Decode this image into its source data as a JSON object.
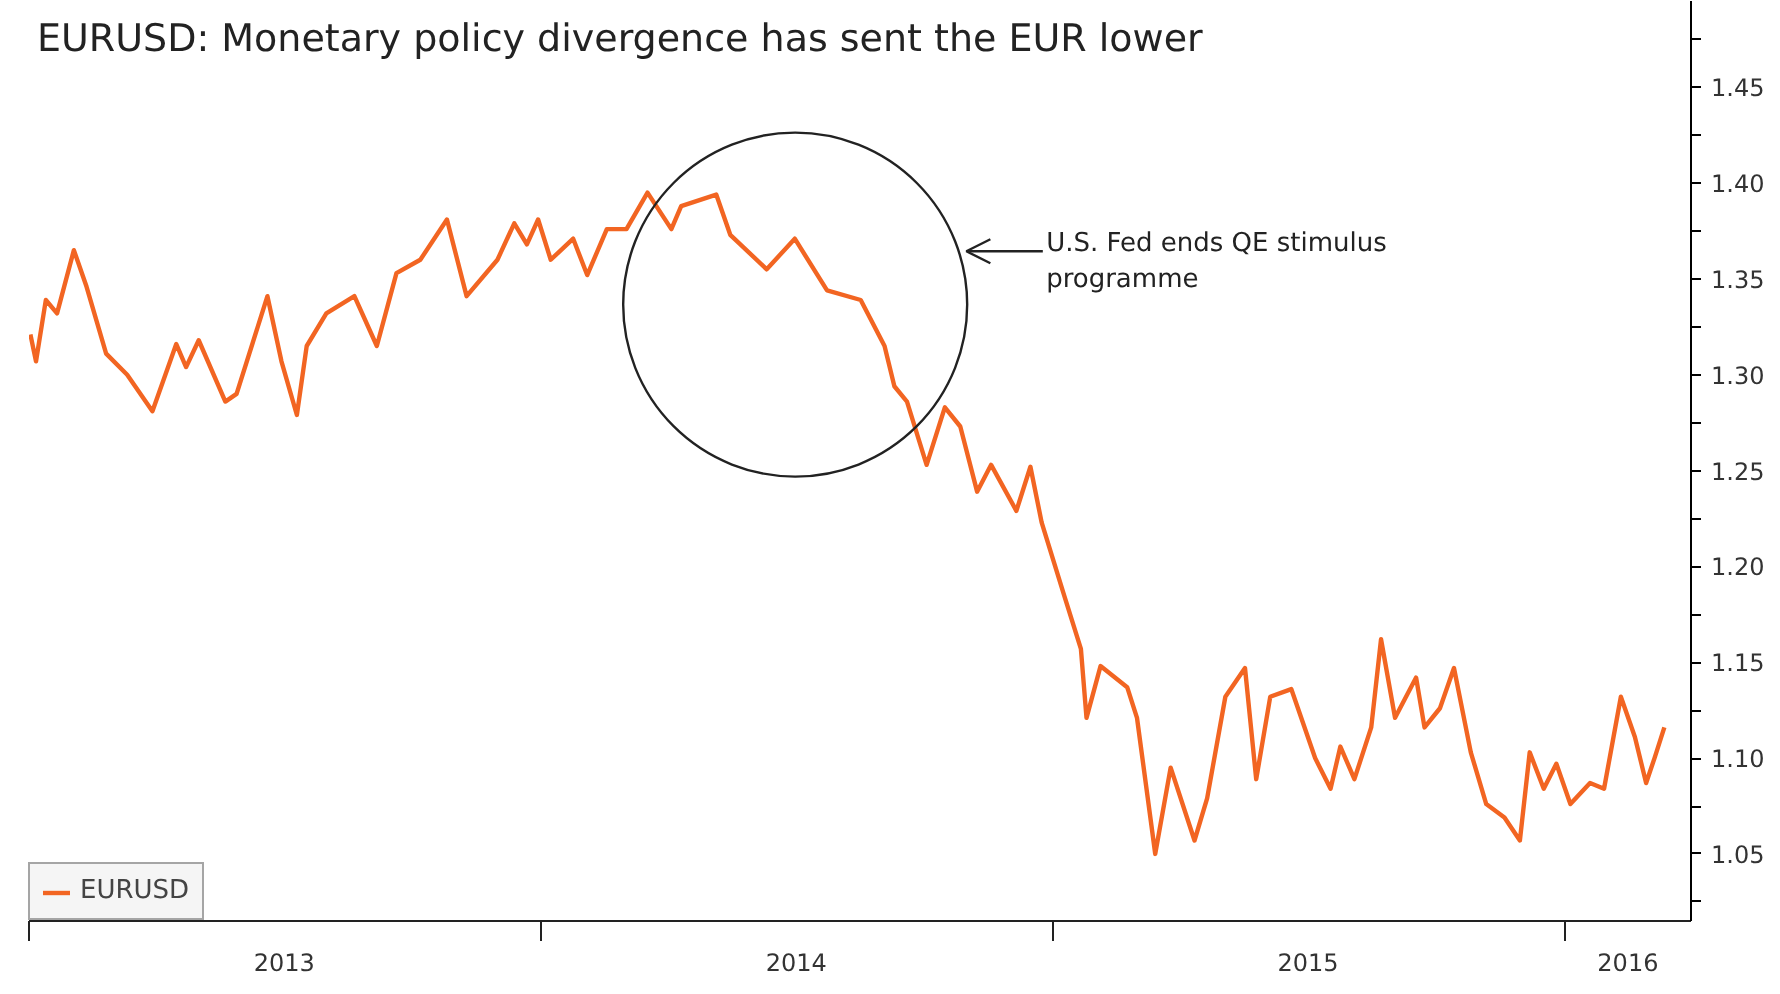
{
  "chart_data": {
    "type": "line",
    "title": "EURUSD: Monetary policy divergence has sent the EUR lower",
    "x": [
      "2013-01-02",
      "2013-01-06",
      "2013-01-13",
      "2013-01-21",
      "2013-02-02",
      "2013-02-11",
      "2013-02-25",
      "2013-03-12",
      "2013-03-30",
      "2013-04-16",
      "2013-04-23",
      "2013-05-02",
      "2013-05-21",
      "2013-05-29",
      "2013-06-20",
      "2013-06-30",
      "2013-07-11",
      "2013-07-18",
      "2013-08-01",
      "2013-08-21",
      "2013-09-06",
      "2013-09-20",
      "2013-10-07",
      "2013-10-26",
      "2013-11-09",
      "2013-12-01",
      "2013-12-13",
      "2013-12-22",
      "2013-12-30",
      "2014-01-08",
      "2014-01-24",
      "2014-02-03",
      "2014-02-17",
      "2014-03-03",
      "2014-03-18",
      "2014-04-04",
      "2014-04-11",
      "2014-05-06",
      "2014-05-16",
      "2014-06-11",
      "2014-07-01",
      "2014-07-24",
      "2014-08-17",
      "2014-09-03",
      "2014-09-10",
      "2014-09-19",
      "2014-10-03",
      "2014-10-16",
      "2014-10-27",
      "2014-11-08",
      "2014-11-18",
      "2014-12-06",
      "2014-12-16",
      "2014-12-24",
      "2015-01-09",
      "2015-01-21",
      "2015-01-25",
      "2015-02-04",
      "2015-02-23",
      "2015-03-02",
      "2015-03-15",
      "2015-03-26",
      "2015-04-12",
      "2015-04-21",
      "2015-05-04",
      "2015-05-18",
      "2015-05-26",
      "2015-06-05",
      "2015-06-20",
      "2015-07-07",
      "2015-07-18",
      "2015-07-25",
      "2015-08-04",
      "2015-08-16",
      "2015-08-23",
      "2015-09-02",
      "2015-09-17",
      "2015-09-23",
      "2015-10-04",
      "2015-10-14",
      "2015-10-26",
      "2015-11-06",
      "2015-11-19",
      "2015-11-30",
      "2015-12-07",
      "2015-12-17",
      "2015-12-26",
      "2016-01-05",
      "2016-01-19",
      "2016-01-29",
      "2016-02-10",
      "2016-02-20",
      "2016-02-28",
      "2016-03-05",
      "2016-03-12"
    ],
    "series": [
      {
        "name": "EURUSD",
        "color": "#f26522",
        "values": [
          1.321,
          1.307,
          1.339,
          1.332,
          1.365,
          1.346,
          1.311,
          1.3,
          1.281,
          1.316,
          1.304,
          1.318,
          1.286,
          1.29,
          1.341,
          1.307,
          1.279,
          1.315,
          1.332,
          1.341,
          1.315,
          1.353,
          1.36,
          1.381,
          1.341,
          1.36,
          1.379,
          1.368,
          1.381,
          1.36,
          1.371,
          1.352,
          1.376,
          1.376,
          1.395,
          1.376,
          1.388,
          1.394,
          1.373,
          1.355,
          1.371,
          1.344,
          1.339,
          1.315,
          1.294,
          1.286,
          1.253,
          1.283,
          1.273,
          1.239,
          1.253,
          1.229,
          1.252,
          1.223,
          1.185,
          1.157,
          1.121,
          1.148,
          1.137,
          1.121,
          1.05,
          1.095,
          1.057,
          1.079,
          1.132,
          1.147,
          1.089,
          1.132,
          1.136,
          1.1,
          1.084,
          1.106,
          1.089,
          1.116,
          1.162,
          1.121,
          1.142,
          1.116,
          1.126,
          1.147,
          1.103,
          1.076,
          1.069,
          1.057,
          1.103,
          1.084,
          1.097,
          1.076,
          1.087,
          1.084,
          1.132,
          1.111,
          1.087,
          1.1,
          1.116
        ]
      }
    ],
    "xlim": [
      "2013-01-01",
      "2016-03-31"
    ],
    "xticks": [
      {
        "value": "2013-01-01",
        "label": null
      },
      {
        "value": "2014-01-01",
        "label": null
      },
      {
        "value": "2015-01-01",
        "label": null
      },
      {
        "value": "2016-01-01",
        "label": null
      },
      {
        "value": "2013-07-02",
        "label": "2013"
      },
      {
        "value": "2014-07-02",
        "label": "2014"
      },
      {
        "value": "2015-07-02",
        "label": "2015"
      },
      {
        "value": "2016-02-15",
        "label": "2016"
      }
    ],
    "ylim": [
      1.015,
      1.495
    ],
    "yticks": [
      {
        "value": 1.025,
        "label": null
      },
      {
        "value": 1.05,
        "label": "1.05"
      },
      {
        "value": 1.075,
        "label": null
      },
      {
        "value": 1.1,
        "label": "1.10"
      },
      {
        "value": 1.125,
        "label": null
      },
      {
        "value": 1.15,
        "label": "1.15"
      },
      {
        "value": 1.175,
        "label": null
      },
      {
        "value": 1.2,
        "label": "1.20"
      },
      {
        "value": 1.225,
        "label": null
      },
      {
        "value": 1.25,
        "label": "1.25"
      },
      {
        "value": 1.275,
        "label": null
      },
      {
        "value": 1.3,
        "label": "1.30"
      },
      {
        "value": 1.325,
        "label": null
      },
      {
        "value": 1.35,
        "label": "1.35"
      },
      {
        "value": 1.375,
        "label": null
      },
      {
        "value": 1.4,
        "label": "1.40"
      },
      {
        "value": 1.425,
        "label": null
      },
      {
        "value": 1.45,
        "label": "1.45"
      },
      {
        "value": 1.475,
        "label": null
      }
    ],
    "annotations": [
      "U.S. Fed ends QE stimulus programme"
    ],
    "grid": false,
    "legend": "bottom left",
    "marker": "none",
    "line_style": "solid"
  }
}
